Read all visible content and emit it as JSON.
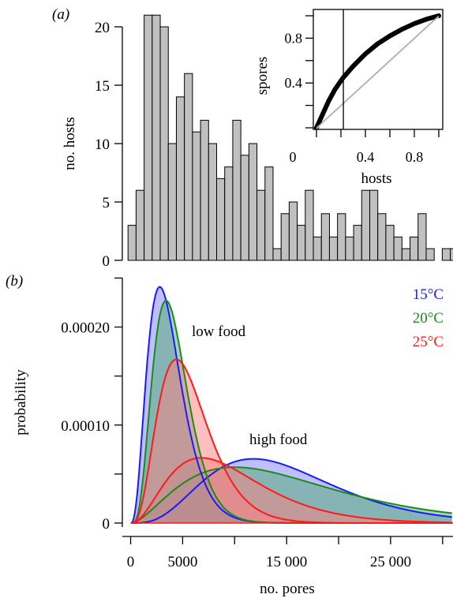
{
  "figure": {
    "panel_a_label": "(a)",
    "panel_b_label": "(b)"
  },
  "chart_data": [
    {
      "type": "bar",
      "panel": "a",
      "title": "",
      "xlabel": "",
      "ylabel": "no. hosts",
      "ylim": [
        0,
        20
      ],
      "yticks": [
        "0",
        "5",
        "10",
        "15",
        "20"
      ],
      "xlim": [
        0,
        31000
      ],
      "bin_start": 750,
      "bin_width": 750,
      "values": [
        3,
        6,
        21,
        21,
        20,
        10,
        14,
        16,
        11,
        12,
        10,
        7,
        8,
        12,
        9,
        10,
        6,
        8,
        1,
        4,
        5,
        3,
        6,
        2,
        4,
        2,
        4,
        2,
        3,
        6,
        6,
        4,
        3,
        2,
        1,
        2,
        4,
        1,
        0,
        1,
        1
      ],
      "grid": false,
      "inset": {
        "type": "line",
        "xlabel": "hosts",
        "ylabel": "spores",
        "xlim": [
          0,
          1
        ],
        "ylim": [
          0,
          1
        ],
        "xticks": [
          0,
          0.4,
          0.8
        ],
        "yticks": [
          0.4,
          0.8
        ],
        "xtick_labels": [
          "0",
          "0.4",
          "0.8"
        ],
        "ytick_labels": [
          "0.4",
          "0.8"
        ],
        "vline_x": 0.22,
        "cumulative_curve": {
          "x": [
            0,
            0.05,
            0.1,
            0.15,
            0.2,
            0.22,
            0.3,
            0.4,
            0.5,
            0.6,
            0.7,
            0.8,
            0.9,
            1.0
          ],
          "y": [
            0,
            0.12,
            0.24,
            0.34,
            0.42,
            0.45,
            0.55,
            0.66,
            0.75,
            0.82,
            0.88,
            0.93,
            0.97,
            1.0
          ]
        },
        "reference_line": {
          "x": [
            0,
            1
          ],
          "y": [
            0,
            1
          ]
        }
      }
    },
    {
      "type": "area",
      "panel": "b",
      "title": "",
      "xlabel": "no. pores",
      "ylabel": "probability",
      "xlim": [
        -800,
        31000
      ],
      "ylim": [
        0,
        0.00026
      ],
      "xtick_labels": [
        "0",
        "5000",
        "15 000",
        "25 000"
      ],
      "xtick_values": [
        0,
        5000,
        15000,
        25000
      ],
      "ytick_labels": [
        "0",
        "0.00010",
        "0.00020"
      ],
      "ytick_values": [
        0,
        0.0001,
        0.0002
      ],
      "legend_position": "top-right",
      "series": [
        {
          "name": "15°C",
          "color": "#1a1aff",
          "fill": "#8080ff",
          "food": "low",
          "peak_x": 2800,
          "peak_y": 0.000241,
          "shape": 3.9
        },
        {
          "name": "20°C",
          "color": "#1a8c1a",
          "fill": "#4daa6b",
          "food": "low",
          "peak_x": 3400,
          "peak_y": 0.000227,
          "shape": 5.0
        },
        {
          "name": "25°C",
          "color": "#ff1a1a",
          "fill": "#ff8080",
          "food": "low",
          "peak_x": 4400,
          "peak_y": 0.000167,
          "shape": 4.3
        },
        {
          "name": "15°C",
          "color": "#1a1aff",
          "fill": "#8080ff",
          "food": "high",
          "peak_x": 11800,
          "peak_y": 6.55e-05,
          "shape": 4.6
        },
        {
          "name": "20°C",
          "color": "#1a8c1a",
          "fill": "#4daa6b",
          "food": "high",
          "peak_x": 10000,
          "peak_y": 5.7e-05,
          "shape": 2.8
        },
        {
          "name": "25°C",
          "color": "#ff1a1a",
          "fill": "#ff8080",
          "food": "high",
          "peak_x": 6800,
          "peak_y": 6.65e-05,
          "shape": 3.3
        }
      ],
      "annotations": [
        {
          "text": "low food",
          "x": 6300,
          "y": 0.000196
        },
        {
          "text": "high food",
          "x": 15000,
          "y": 8.35e-05
        }
      ]
    }
  ]
}
